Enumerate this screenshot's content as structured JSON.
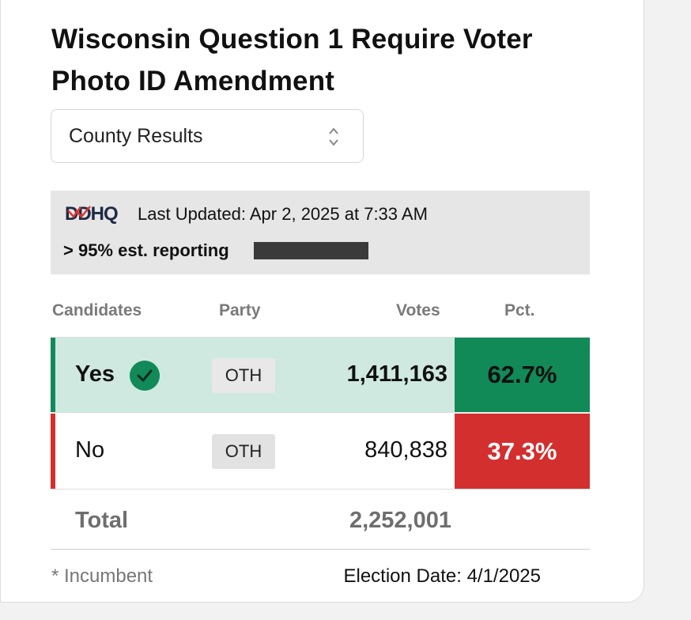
{
  "title": "Wisconsin Question 1 Require Voter Photo ID Amendment",
  "view_select": {
    "selected": "County Results"
  },
  "info": {
    "logo_text": "DDHQ",
    "last_updated": "Last Updated: Apr 2, 2025 at 7:33 AM",
    "reporting": "> 95% est. reporting",
    "reporting_fraction": 0.95
  },
  "table": {
    "headers": {
      "candidates": "Candidates",
      "party": "Party",
      "votes": "Votes",
      "pct": "Pct."
    },
    "rows": [
      {
        "candidate": "Yes",
        "party": "OTH",
        "votes": "1,411,163",
        "pct": "62.7%",
        "winner": true,
        "color": "#118a58"
      },
      {
        "candidate": "No",
        "party": "OTH",
        "votes": "840,838",
        "pct": "37.3%",
        "winner": false,
        "color": "#d32f2f"
      }
    ],
    "total_label": "Total",
    "total_votes": "2,252,001"
  },
  "footer": {
    "incumbent_note": "* Incumbent",
    "election_date": "Election Date: 4/1/2025"
  },
  "colors": {
    "winner_green": "#118a58",
    "loser_red": "#d32f2f",
    "winner_row_bg": "#cfe9e1"
  }
}
